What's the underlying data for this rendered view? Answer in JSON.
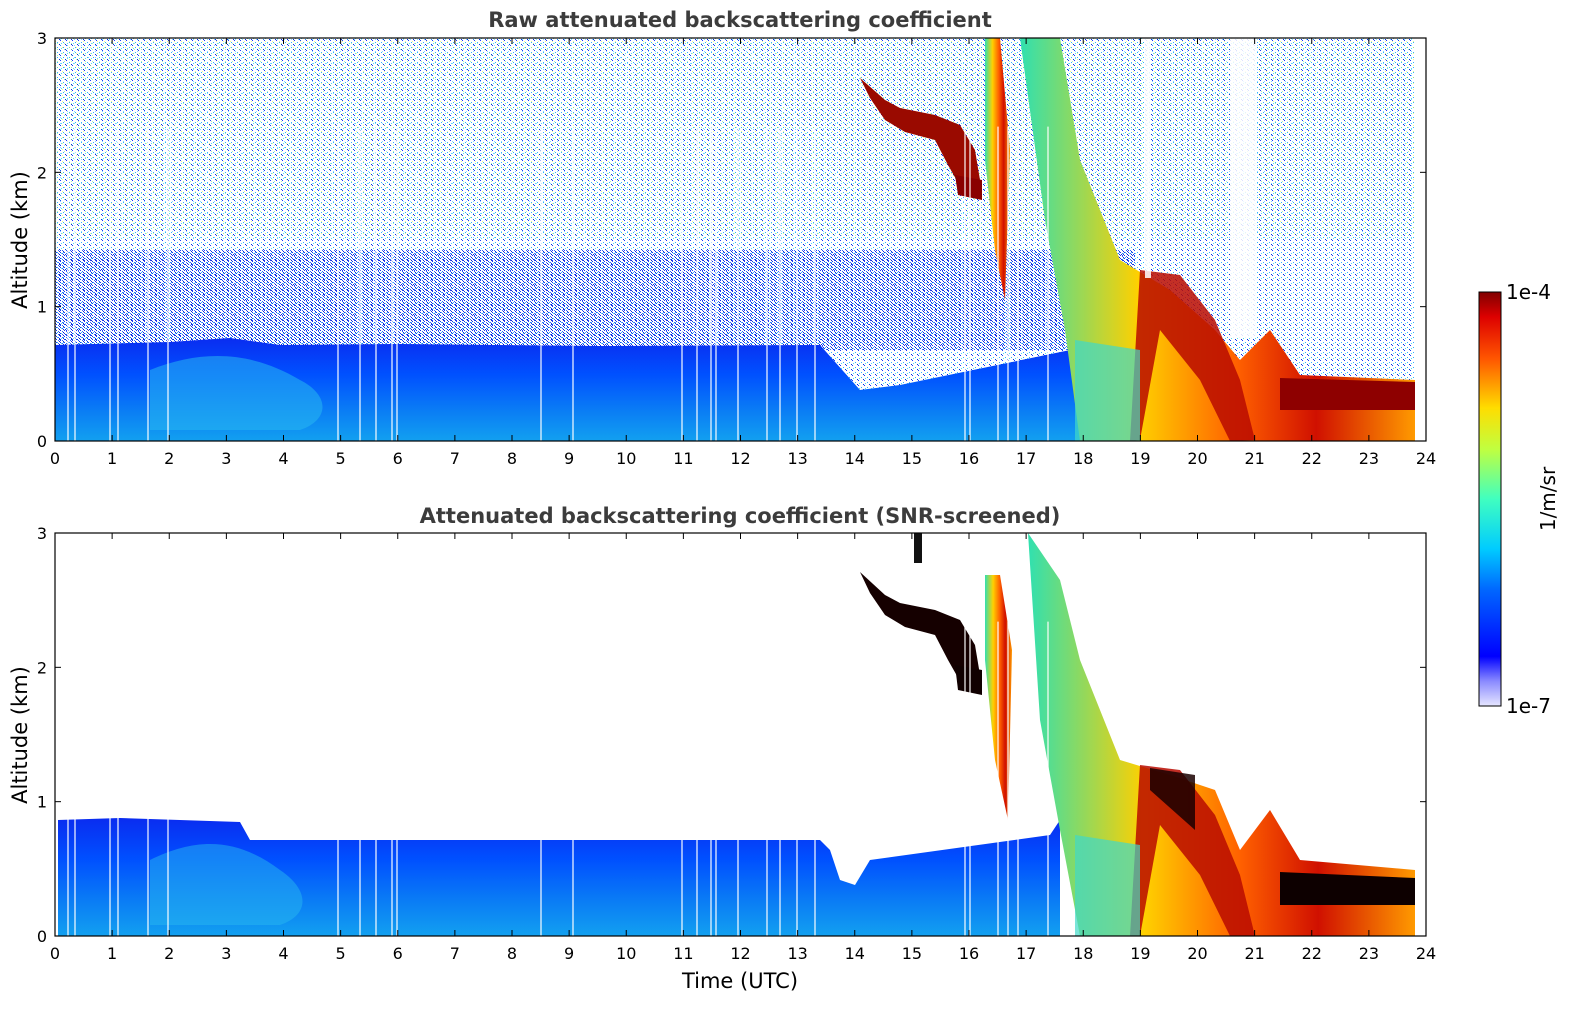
{
  "chart_data": [
    {
      "type": "heatmap",
      "title": "Raw attenuated backscattering coefficient",
      "xlabel": "",
      "ylabel": "Altitude (km)",
      "xlim": [
        0,
        24
      ],
      "ylim": [
        0,
        3
      ],
      "xticks": [
        "0",
        "1",
        "2",
        "3",
        "4",
        "5",
        "6",
        "7",
        "8",
        "9",
        "10",
        "11",
        "12",
        "13",
        "14",
        "15",
        "16",
        "17",
        "18",
        "19",
        "20",
        "21",
        "22",
        "23",
        "24"
      ],
      "yticks": [
        "0",
        "1",
        "2",
        "3"
      ],
      "screened": false,
      "features": [
        {
          "name": "boundary layer",
          "time": [
            0,
            18
          ],
          "altitude_km": [
            0,
            0.7
          ],
          "level": "low"
        },
        {
          "name": "elevated cloud layer",
          "time": [
            14.3,
            16.0
          ],
          "altitude_km": [
            1.9,
            2.7
          ],
          "level": "high"
        },
        {
          "name": "falling precipitation streaks",
          "time": [
            16.2,
            21.0
          ],
          "altitude_km": [
            0,
            3.0
          ],
          "level": "medium-high"
        },
        {
          "name": "low cloud",
          "time": [
            21.0,
            23.8
          ],
          "altitude_km": [
            0.2,
            0.45
          ],
          "level": "high"
        }
      ]
    },
    {
      "type": "heatmap",
      "title": "Attenuated backscattering coefficient (SNR-screened)",
      "xlabel": "Time (UTC)",
      "ylabel": "Altitude (km)",
      "xlim": [
        0,
        24
      ],
      "ylim": [
        0,
        3
      ],
      "xticks": [
        "0",
        "1",
        "2",
        "3",
        "4",
        "5",
        "6",
        "7",
        "8",
        "9",
        "10",
        "11",
        "12",
        "13",
        "14",
        "15",
        "16",
        "17",
        "18",
        "19",
        "20",
        "21",
        "22",
        "23",
        "24"
      ],
      "yticks": [
        "0",
        "1",
        "2",
        "3"
      ],
      "screened": true,
      "features": [
        {
          "name": "boundary layer",
          "time": [
            0,
            18
          ],
          "altitude_km": [
            0,
            0.75
          ],
          "level": "low"
        },
        {
          "name": "elevated cloud layer",
          "time": [
            14.3,
            16.0
          ],
          "altitude_km": [
            1.9,
            2.7
          ],
          "level": "saturated"
        },
        {
          "name": "falling precipitation streaks",
          "time": [
            16.2,
            21.0
          ],
          "altitude_km": [
            0,
            3.0
          ],
          "level": "medium-high"
        },
        {
          "name": "low cloud",
          "time": [
            21.0,
            23.8
          ],
          "altitude_km": [
            0.2,
            0.45
          ],
          "level": "saturated"
        }
      ]
    }
  ],
  "colorbar": {
    "max_label": "1e-4",
    "min_label": "1e-7",
    "unit_label": "1/m/sr"
  }
}
